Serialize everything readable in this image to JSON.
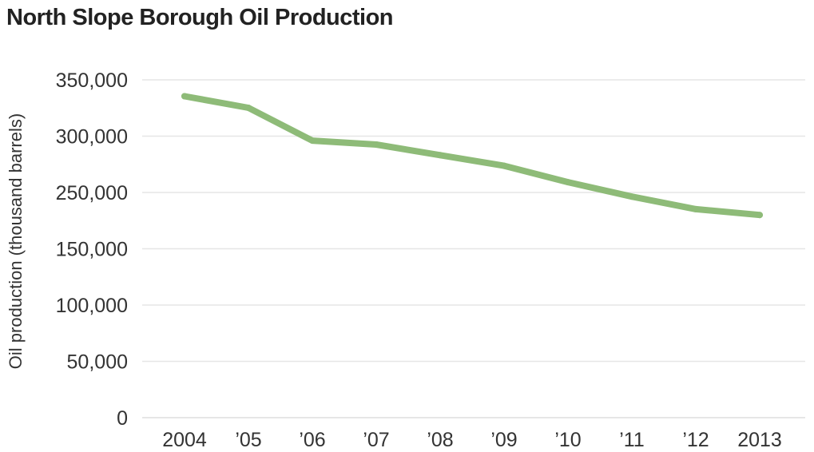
{
  "chart_data": {
    "type": "line",
    "title": "North Slope Borough Oil Production",
    "ylabel": "Oil production (thousand barrels)",
    "xlabel": "",
    "x": [
      "2004",
      "'05",
      "'06",
      "'07",
      "'08",
      "'09",
      "'10",
      "'11",
      "'12",
      "2013"
    ],
    "y_ticks": [
      "350,000",
      "300,000",
      "250,000",
      "150,000",
      "100,000",
      "50,000",
      "0"
    ],
    "series": [
      {
        "values": [
          333000,
          321000,
          287000,
          283000,
          272000,
          261000,
          244000,
          229000,
          216000,
          210000
        ]
      }
    ],
    "ylim": [
      0,
      350000
    ],
    "grid": true,
    "colors": {
      "line": "#8ebb78",
      "grid": "#e6e6e6"
    }
  }
}
